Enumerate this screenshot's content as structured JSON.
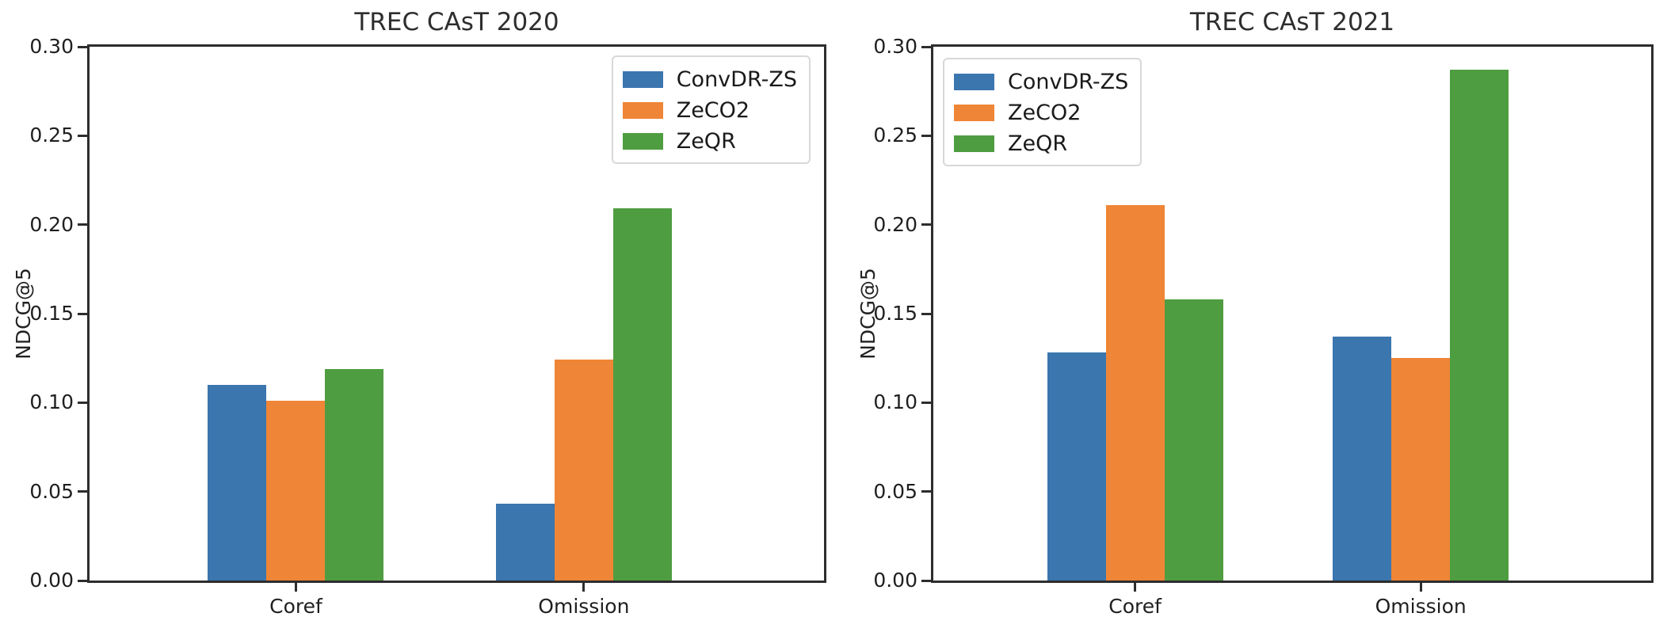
{
  "figure": {
    "background": "#ffffff",
    "axis_color": "#2d2d2d",
    "text_color": "#1f1f1f"
  },
  "chart_data": [
    {
      "type": "bar",
      "title": "TREC CAsT 2020",
      "xlabel": "",
      "ylabel": "NDCG@5",
      "categories": [
        "Coref",
        "Omission"
      ],
      "series": [
        {
          "name": "ConvDR-ZS",
          "color": "#3b76af",
          "values": [
            0.11,
            0.043
          ]
        },
        {
          "name": "ZeCO2",
          "color": "#ef8536",
          "values": [
            0.101,
            0.124
          ]
        },
        {
          "name": "ZeQR",
          "color": "#4f9d41",
          "values": [
            0.119,
            0.209
          ]
        }
      ],
      "ylim": [
        0.0,
        0.3
      ],
      "yticks": [
        0.0,
        0.05,
        0.1,
        0.15,
        0.2,
        0.25,
        0.3
      ],
      "grid": false,
      "legend_position": "upper right",
      "legend_entries": [
        "ConvDR-ZS",
        "ZeCO2",
        "ZeQR"
      ]
    },
    {
      "type": "bar",
      "title": "TREC CAsT 2021",
      "xlabel": "",
      "ylabel": "NDCG@5",
      "categories": [
        "Coref",
        "Omission"
      ],
      "series": [
        {
          "name": "ConvDR-ZS",
          "color": "#3b76af",
          "values": [
            0.128,
            0.137
          ]
        },
        {
          "name": "ZeCO2",
          "color": "#ef8536",
          "values": [
            0.211,
            0.125
          ]
        },
        {
          "name": "ZeQR",
          "color": "#4f9d41",
          "values": [
            0.158,
            0.287
          ]
        }
      ],
      "ylim": [
        0.0,
        0.3
      ],
      "yticks": [
        0.0,
        0.05,
        0.1,
        0.15,
        0.2,
        0.25,
        0.3
      ],
      "grid": false,
      "legend_position": "upper left",
      "legend_entries": [
        "ConvDR-ZS",
        "ZeCO2",
        "ZeQR"
      ]
    }
  ]
}
